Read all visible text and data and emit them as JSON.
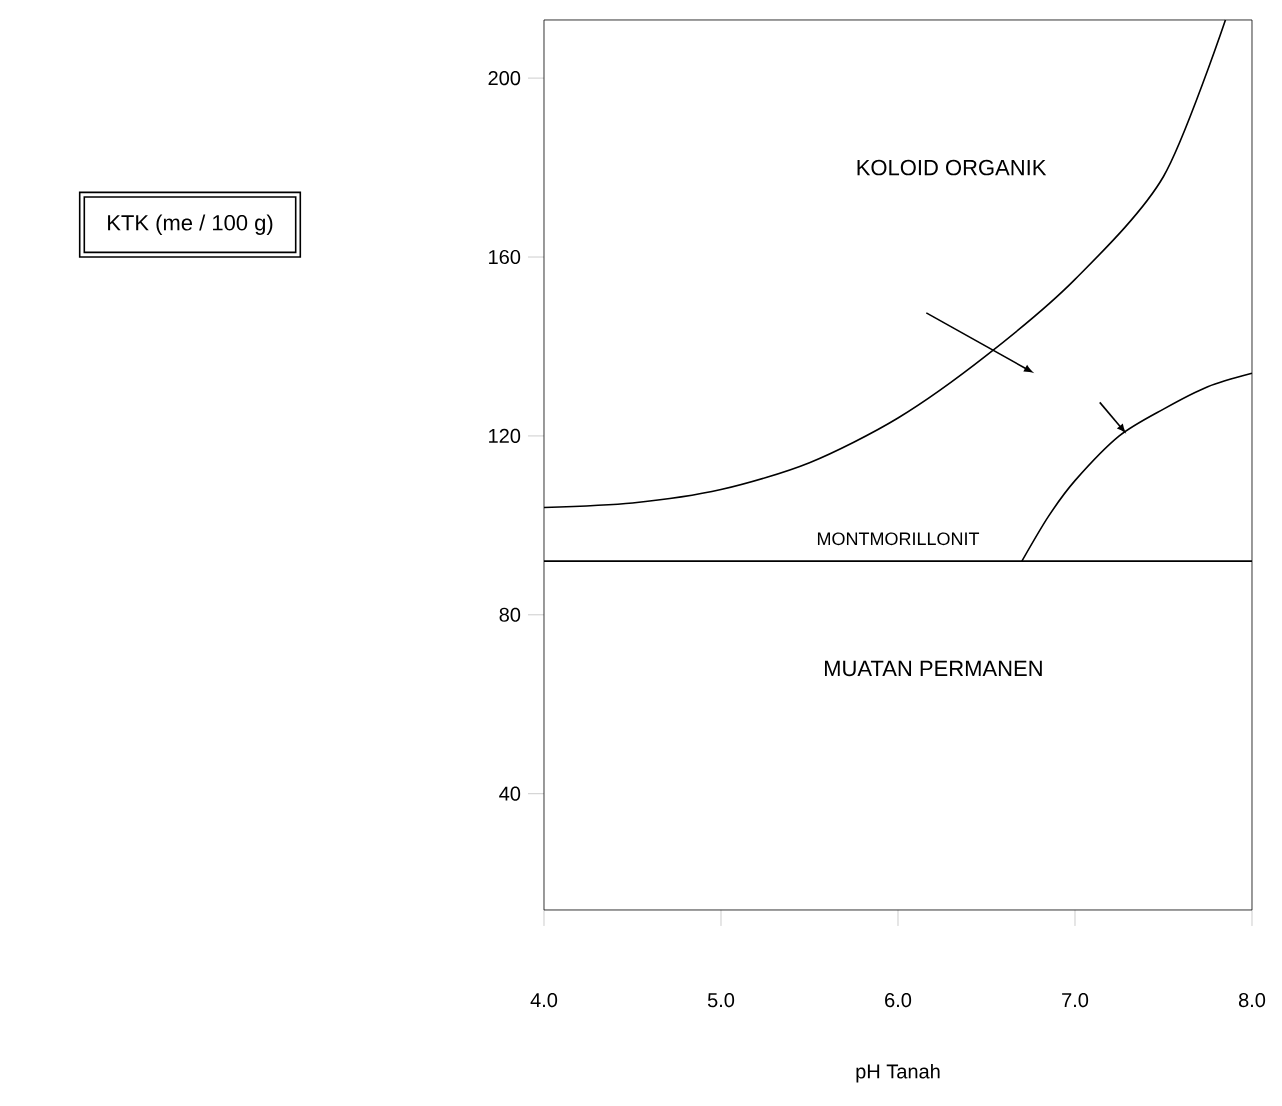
{
  "chart_data": {
    "type": "line",
    "xlabel": "pH Tanah",
    "xlim": [
      4.0,
      8.0
    ],
    "ylim": [
      14,
      213
    ],
    "xticks": [
      {
        "value": 4,
        "label": "4.0"
      },
      {
        "value": 5,
        "label": "5.0"
      },
      {
        "value": 6,
        "label": "6.0"
      },
      {
        "value": 7,
        "label": "7.0"
      },
      {
        "value": 8,
        "label": "8.0"
      }
    ],
    "yticks": [
      40,
      80,
      120,
      160,
      200
    ],
    "series": [
      {
        "color": "#000000",
        "x": [
          4.0,
          4.5,
          5.0,
          5.5,
          6.0,
          6.5,
          7.0,
          7.5,
          7.85
        ],
        "values": [
          104,
          105,
          108,
          114,
          124,
          138,
          155,
          178,
          213
        ]
      },
      {
        "color": "#000000",
        "x": [
          6.7,
          6.85,
          7.0,
          7.25,
          7.5,
          7.75,
          8.0
        ],
        "values": [
          92,
          102,
          110,
          120,
          126,
          131,
          134
        ]
      }
    ],
    "ref_lines": [
      {
        "axis": "y",
        "value": 92
      }
    ],
    "annotations": [
      "KOLOID ORGANIK",
      "MONTMORILLONIT",
      "MUATAN PERMANEN",
      "KTK (me / 100 g)"
    ],
    "grid": false,
    "marker": "none",
    "line_style": "solid"
  }
}
